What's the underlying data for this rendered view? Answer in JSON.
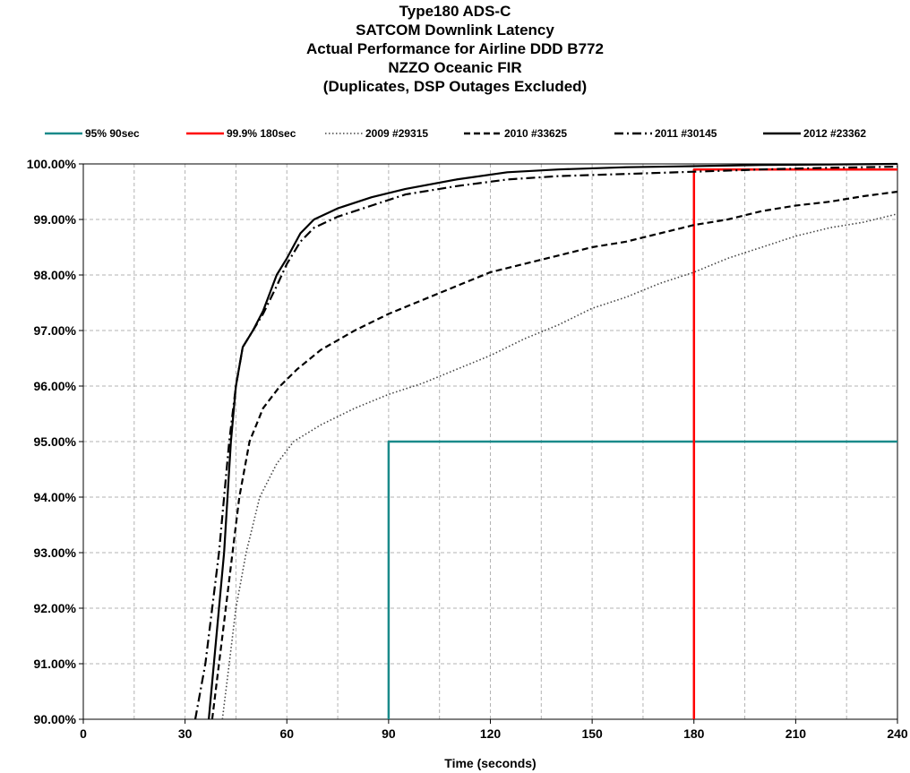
{
  "chart_data": {
    "type": "line",
    "title": [
      "Type180 ADS-C",
      "SATCOM  Downlink  Latency",
      "Actual Performance  for Airline DDD  B772",
      "NZZO Oceanic FIR",
      "(Duplicates, DSP Outages Excluded)"
    ],
    "xlabel": "Time (seconds)",
    "ylabel": "",
    "xlim": [
      0,
      240
    ],
    "ylim": [
      90,
      100
    ],
    "x_ticks": [
      0,
      30,
      60,
      90,
      120,
      150,
      180,
      210,
      240
    ],
    "x_tick_labels": [
      "0",
      "30",
      "60",
      "90",
      "120",
      "150",
      "180",
      "210",
      "240"
    ],
    "y_ticks": [
      90,
      91,
      92,
      93,
      94,
      95,
      96,
      97,
      98,
      99,
      100
    ],
    "y_tick_labels": [
      "90.00%",
      "91.00%",
      "92.00%",
      "93.00%",
      "94.00%",
      "95.00%",
      "96.00%",
      "97.00%",
      "98.00%",
      "99.00%",
      "100.00%"
    ],
    "grid": "dashed, every 15 seconds and every 1%",
    "legend_position": "top",
    "series": [
      {
        "name": "95% 90sec",
        "color": "#1a8a8a",
        "style": "solid",
        "points": [
          [
            90,
            90
          ],
          [
            90,
            95
          ],
          [
            240,
            95
          ]
        ]
      },
      {
        "name": "99.9% 180sec",
        "color": "#ff0000",
        "style": "solid",
        "points": [
          [
            180,
            90
          ],
          [
            180,
            99.9
          ],
          [
            240,
            99.9
          ]
        ]
      },
      {
        "name": "2009 #29315",
        "color": "#444444",
        "style": "dotted",
        "points": [
          [
            41,
            90
          ],
          [
            43,
            91
          ],
          [
            45,
            92
          ],
          [
            48,
            93
          ],
          [
            52,
            94
          ],
          [
            57,
            94.6
          ],
          [
            62,
            95
          ],
          [
            70,
            95.3
          ],
          [
            80,
            95.6
          ],
          [
            90,
            95.85
          ],
          [
            100,
            96.05
          ],
          [
            110,
            96.3
          ],
          [
            120,
            96.55
          ],
          [
            130,
            96.85
          ],
          [
            140,
            97.1
          ],
          [
            150,
            97.4
          ],
          [
            160,
            97.6
          ],
          [
            170,
            97.85
          ],
          [
            180,
            98.05
          ],
          [
            190,
            98.3
          ],
          [
            200,
            98.5
          ],
          [
            210,
            98.7
          ],
          [
            220,
            98.85
          ],
          [
            230,
            98.95
          ],
          [
            240,
            99.1
          ]
        ]
      },
      {
        "name": "2010 #33625",
        "color": "#000000",
        "style": "dashed",
        "points": [
          [
            38,
            90
          ],
          [
            40,
            91
          ],
          [
            42,
            92
          ],
          [
            44,
            93
          ],
          [
            46,
            94
          ],
          [
            49,
            95
          ],
          [
            53,
            95.6
          ],
          [
            58,
            96
          ],
          [
            63,
            96.3
          ],
          [
            70,
            96.65
          ],
          [
            80,
            97
          ],
          [
            90,
            97.3
          ],
          [
            100,
            97.55
          ],
          [
            110,
            97.8
          ],
          [
            120,
            98.05
          ],
          [
            130,
            98.2
          ],
          [
            140,
            98.35
          ],
          [
            150,
            98.5
          ],
          [
            160,
            98.6
          ],
          [
            170,
            98.75
          ],
          [
            180,
            98.9
          ],
          [
            190,
            99
          ],
          [
            200,
            99.15
          ],
          [
            210,
            99.25
          ],
          [
            220,
            99.32
          ],
          [
            230,
            99.42
          ],
          [
            240,
            99.5
          ]
        ]
      },
      {
        "name": "2011 #30145",
        "color": "#000000",
        "style": "dash-dot",
        "points": [
          [
            33,
            90
          ],
          [
            36,
            91
          ],
          [
            38,
            92
          ],
          [
            40,
            93
          ],
          [
            41.5,
            94
          ],
          [
            43,
            95
          ],
          [
            45,
            96
          ],
          [
            47,
            96.7
          ],
          [
            50,
            97
          ],
          [
            53,
            97.3
          ],
          [
            57,
            97.8
          ],
          [
            60,
            98.2
          ],
          [
            64,
            98.6
          ],
          [
            68,
            98.85
          ],
          [
            75,
            99.05
          ],
          [
            85,
            99.25
          ],
          [
            95,
            99.45
          ],
          [
            110,
            99.6
          ],
          [
            125,
            99.72
          ],
          [
            140,
            99.78
          ],
          [
            160,
            99.82
          ],
          [
            180,
            99.86
          ],
          [
            200,
            99.9
          ],
          [
            220,
            99.93
          ],
          [
            240,
            99.95
          ]
        ]
      },
      {
        "name": "2012 #23362",
        "color": "#000000",
        "style": "solid",
        "points": [
          [
            37,
            90
          ],
          [
            38.5,
            91
          ],
          [
            40,
            92
          ],
          [
            41.5,
            93
          ],
          [
            42.5,
            94
          ],
          [
            43.5,
            95
          ],
          [
            45,
            96
          ],
          [
            47,
            96.7
          ],
          [
            50,
            97
          ],
          [
            53,
            97.35
          ],
          [
            57,
            98
          ],
          [
            60,
            98.3
          ],
          [
            64,
            98.75
          ],
          [
            68,
            99
          ],
          [
            75,
            99.2
          ],
          [
            85,
            99.4
          ],
          [
            95,
            99.55
          ],
          [
            110,
            99.72
          ],
          [
            125,
            99.85
          ],
          [
            140,
            99.9
          ],
          [
            160,
            99.94
          ],
          [
            180,
            99.96
          ],
          [
            200,
            99.98
          ],
          [
            220,
            99.99
          ],
          [
            240,
            100
          ]
        ]
      }
    ]
  }
}
